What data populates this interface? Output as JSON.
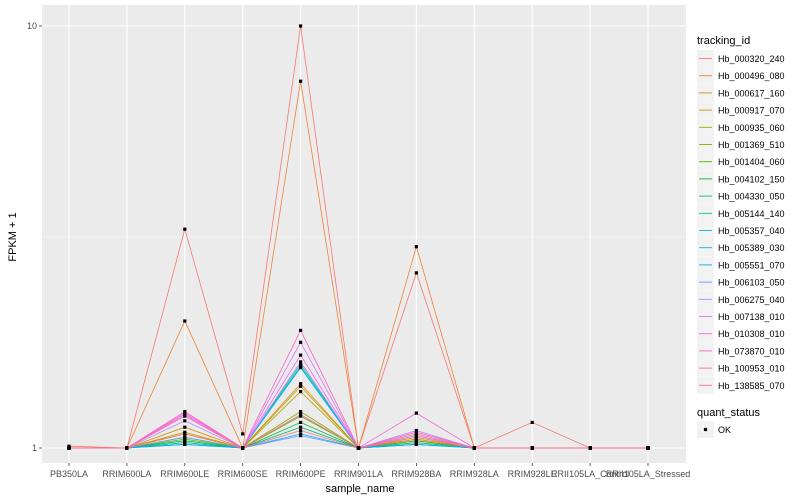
{
  "chart_data": {
    "type": "line",
    "xlabel": "sample_name",
    "ylabel": "FPKM + 1",
    "y_scale": "log10",
    "ylim": [
      1,
      10
    ],
    "y_ticks": [
      {
        "value": 1,
        "label": "1"
      },
      {
        "value": 10,
        "label": "10"
      }
    ],
    "grid": true,
    "legend_placement": "right",
    "categories": [
      "PB350LA",
      "RRIM600LA",
      "RRIM600LE",
      "RRIM600SE",
      "RRIM600PE",
      "RRIM901LA",
      "RRIM928BA",
      "RRIM928LA",
      "RRIM928LE",
      "RRII105LA_Control",
      "RRII105LA_Stressed"
    ],
    "series": [
      {
        "name": "Hb_000320_240",
        "color": "#F8766D",
        "values": [
          1.01,
          1.0,
          3.3,
          1.08,
          10.0,
          1.0,
          2.6,
          1.0,
          1.15,
          1.0,
          1.0
        ]
      },
      {
        "name": "Hb_000496_080",
        "color": "#EB8335",
        "values": [
          1.0,
          1.0,
          2.0,
          1.0,
          7.4,
          1.0,
          3.0,
          1.0,
          1.0,
          1.0,
          1.0
        ]
      },
      {
        "name": "Hb_000617_160",
        "color": "#DA8F00",
        "values": [
          1.0,
          1.0,
          1.12,
          1.0,
          1.42,
          1.0,
          1.06,
          1.0,
          1.0,
          1.0,
          1.0
        ]
      },
      {
        "name": "Hb_000917_070",
        "color": "#C49A00",
        "values": [
          1.0,
          1.0,
          1.09,
          1.0,
          1.4,
          1.0,
          1.04,
          1.0,
          1.0,
          1.0,
          1.0
        ]
      },
      {
        "name": "Hb_000935_060",
        "color": "#A9A400",
        "values": [
          1.0,
          1.0,
          1.08,
          1.0,
          1.36,
          1.0,
          1.05,
          1.0,
          1.0,
          1.0,
          1.0
        ]
      },
      {
        "name": "Hb_001369_510",
        "color": "#86AC00",
        "values": [
          1.0,
          1.0,
          1.06,
          1.0,
          1.22,
          1.0,
          1.05,
          1.0,
          1.0,
          1.0,
          1.0
        ]
      },
      {
        "name": "Hb_001404_060",
        "color": "#53B400",
        "values": [
          1.0,
          1.0,
          1.05,
          1.0,
          1.19,
          1.0,
          1.04,
          1.0,
          1.0,
          1.0,
          1.0
        ]
      },
      {
        "name": "Hb_004102_150",
        "color": "#00BA38",
        "values": [
          1.0,
          1.0,
          1.04,
          1.0,
          1.15,
          1.0,
          1.03,
          1.0,
          1.0,
          1.0,
          1.0
        ]
      },
      {
        "name": "Hb_004330_050",
        "color": "#00BE72",
        "values": [
          1.0,
          1.0,
          1.03,
          1.0,
          1.12,
          1.0,
          1.02,
          1.0,
          1.0,
          1.0,
          1.0
        ]
      },
      {
        "name": "Hb_005144_140",
        "color": "#00C19F",
        "values": [
          1.0,
          1.0,
          1.02,
          1.0,
          1.58,
          1.0,
          1.03,
          1.0,
          1.0,
          1.0,
          1.0
        ]
      },
      {
        "name": "Hb_005357_040",
        "color": "#00BFC4",
        "values": [
          1.0,
          1.0,
          1.03,
          1.0,
          1.56,
          1.0,
          1.02,
          1.0,
          1.0,
          1.0,
          1.0
        ]
      },
      {
        "name": "Hb_005389_030",
        "color": "#00B9E3",
        "values": [
          1.0,
          1.0,
          1.02,
          1.0,
          1.55,
          1.0,
          1.02,
          1.0,
          1.0,
          1.0,
          1.0
        ]
      },
      {
        "name": "Hb_005551_070",
        "color": "#00ADFA",
        "values": [
          1.0,
          1.0,
          1.02,
          1.0,
          1.08,
          1.0,
          1.02,
          1.0,
          1.0,
          1.0,
          1.0
        ]
      },
      {
        "name": "Hb_006103_050",
        "color": "#619CFF",
        "values": [
          1.0,
          1.0,
          1.06,
          1.0,
          1.07,
          1.0,
          1.07,
          1.0,
          1.0,
          1.0,
          1.0
        ]
      },
      {
        "name": "Hb_006275_040",
        "color": "#AE87FF",
        "values": [
          1.0,
          1.0,
          1.16,
          1.0,
          1.6,
          1.0,
          1.1,
          1.0,
          1.0,
          1.0,
          1.0
        ]
      },
      {
        "name": "Hb_007138_010",
        "color": "#DB72FB",
        "values": [
          1.0,
          1.0,
          1.2,
          1.0,
          1.78,
          1.0,
          1.07,
          1.0,
          1.0,
          1.0,
          1.0
        ]
      },
      {
        "name": "Hb_010308_010",
        "color": "#F564E3",
        "values": [
          1.0,
          1.0,
          1.21,
          1.0,
          1.66,
          1.0,
          1.21,
          1.0,
          1.0,
          1.0,
          1.0
        ]
      },
      {
        "name": "Hb_073870_010",
        "color": "#FF61C3",
        "values": [
          1.0,
          1.0,
          1.22,
          1.0,
          1.9,
          1.0,
          1.09,
          1.0,
          1.0,
          1.0,
          1.0
        ]
      },
      {
        "name": "Hb_100953_010",
        "color": "#FF699C",
        "values": [
          1.0,
          1.0,
          1.19,
          1.0,
          1.2,
          1.0,
          1.08,
          1.0,
          1.0,
          1.0,
          1.0
        ]
      },
      {
        "name": "Hb_138585_070",
        "color": "#FC717F",
        "values": [
          1.0,
          1.0,
          1.08,
          1.0,
          1.1,
          1.0,
          1.05,
          1.0,
          1.0,
          1.0,
          1.0
        ]
      }
    ],
    "legend": {
      "color_title": "tracking_id",
      "shape_title": "quant_status",
      "shape_entries": [
        "OK"
      ]
    }
  }
}
